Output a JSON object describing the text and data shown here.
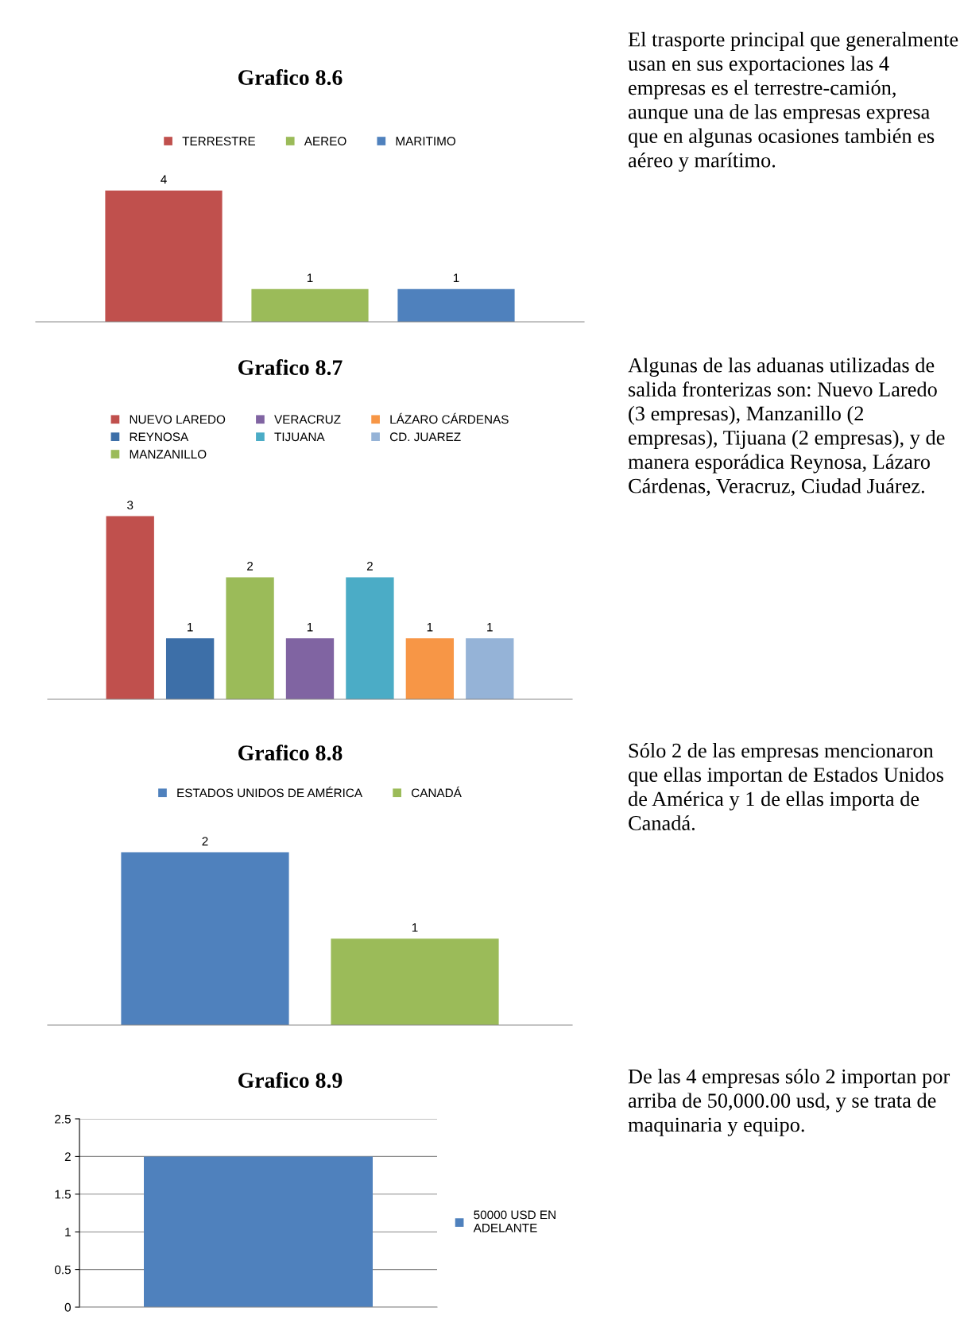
{
  "chart_data": [
    {
      "type": "bar",
      "title": "Grafico 8.6",
      "categories": [
        null
      ],
      "series": [
        {
          "name": "TERRESTRE",
          "color": "#c0504d",
          "values": [
            4
          ]
        },
        {
          "name": "AEREO",
          "color": "#9bbb59",
          "values": [
            1
          ]
        },
        {
          "name": "MARITIMO",
          "color": "#4f81bd",
          "values": [
            1
          ]
        }
      ],
      "data_labels": true,
      "legend": "top",
      "tick_labels": false,
      "grid": false
    },
    {
      "type": "other",
      "annotations": [
        "El trasporte principal que generalmente usan en sus exportaciones las 4 empresas es el terrestre-camión, aunque una de las empresas expresa que en algunas ocasiones también es aéreo y marítimo."
      ]
    },
    {
      "type": "bar",
      "title": "Grafico 8.7",
      "categories": [
        null
      ],
      "series": [
        {
          "name": "NUEVO LAREDO",
          "color": "#c0504d",
          "values": [
            3
          ]
        },
        {
          "name": "REYNOSA",
          "color": "#3d6fa8",
          "values": [
            1
          ]
        },
        {
          "name": "MANZANILLO",
          "color": "#9bbb59",
          "values": [
            2
          ]
        },
        {
          "name": "VERACRUZ",
          "color": "#8064a2",
          "values": [
            1
          ]
        },
        {
          "name": "TIJUANA",
          "color": "#4bacc6",
          "values": [
            2
          ]
        },
        {
          "name": "LÁZARO CÁRDENAS",
          "color": "#f79646",
          "values": [
            1
          ]
        },
        {
          "name": "CD. JUAREZ",
          "color": "#95b3d7",
          "values": [
            1
          ]
        }
      ],
      "data_labels": true,
      "legend": "top",
      "tick_labels": false,
      "grid": false
    },
    {
      "type": "other",
      "annotations": [
        "Algunas de las aduanas utilizadas de salida fronterizas son: Nuevo Laredo (3 empresas), Manzanillo (2 empresas), Tijuana (2 empresas), y de manera esporádica Reynosa, Lázaro Cárdenas, Veracruz, Ciudad Juárez."
      ]
    },
    {
      "type": "bar",
      "title": "Grafico 8.8",
      "categories": [
        null
      ],
      "series": [
        {
          "name": "ESTADOS UNIDOS DE AMÉRICA",
          "color": "#4f81bd",
          "values": [
            2
          ]
        },
        {
          "name": "CANADÁ",
          "color": "#9bbb59",
          "values": [
            1
          ]
        }
      ],
      "data_labels": true,
      "legend": "top",
      "tick_labels": false,
      "grid": false
    },
    {
      "type": "other",
      "annotations": [
        "Sólo 2 de las empresas mencionaron que ellas importan de Estados Unidos de América y 1 de ellas importa de Canadá."
      ]
    },
    {
      "type": "bar",
      "title": "Grafico 8.9",
      "categories": [
        null
      ],
      "series": [
        {
          "name": "50000 USD EN\nADELANTE",
          "color": "#4f81bd",
          "values": [
            2
          ]
        }
      ],
      "ylim": [
        0,
        2.5
      ],
      "yticks": [
        0,
        0.5,
        1,
        1.5,
        2,
        2.5
      ],
      "grid": "y",
      "legend": "right",
      "tick_labels": "y"
    },
    {
      "type": "other",
      "annotations": [
        "De las 4 empresas sólo 2 importan por arriba de 50,000.00 usd, y se trata de maquinaria y equipo."
      ]
    }
  ]
}
